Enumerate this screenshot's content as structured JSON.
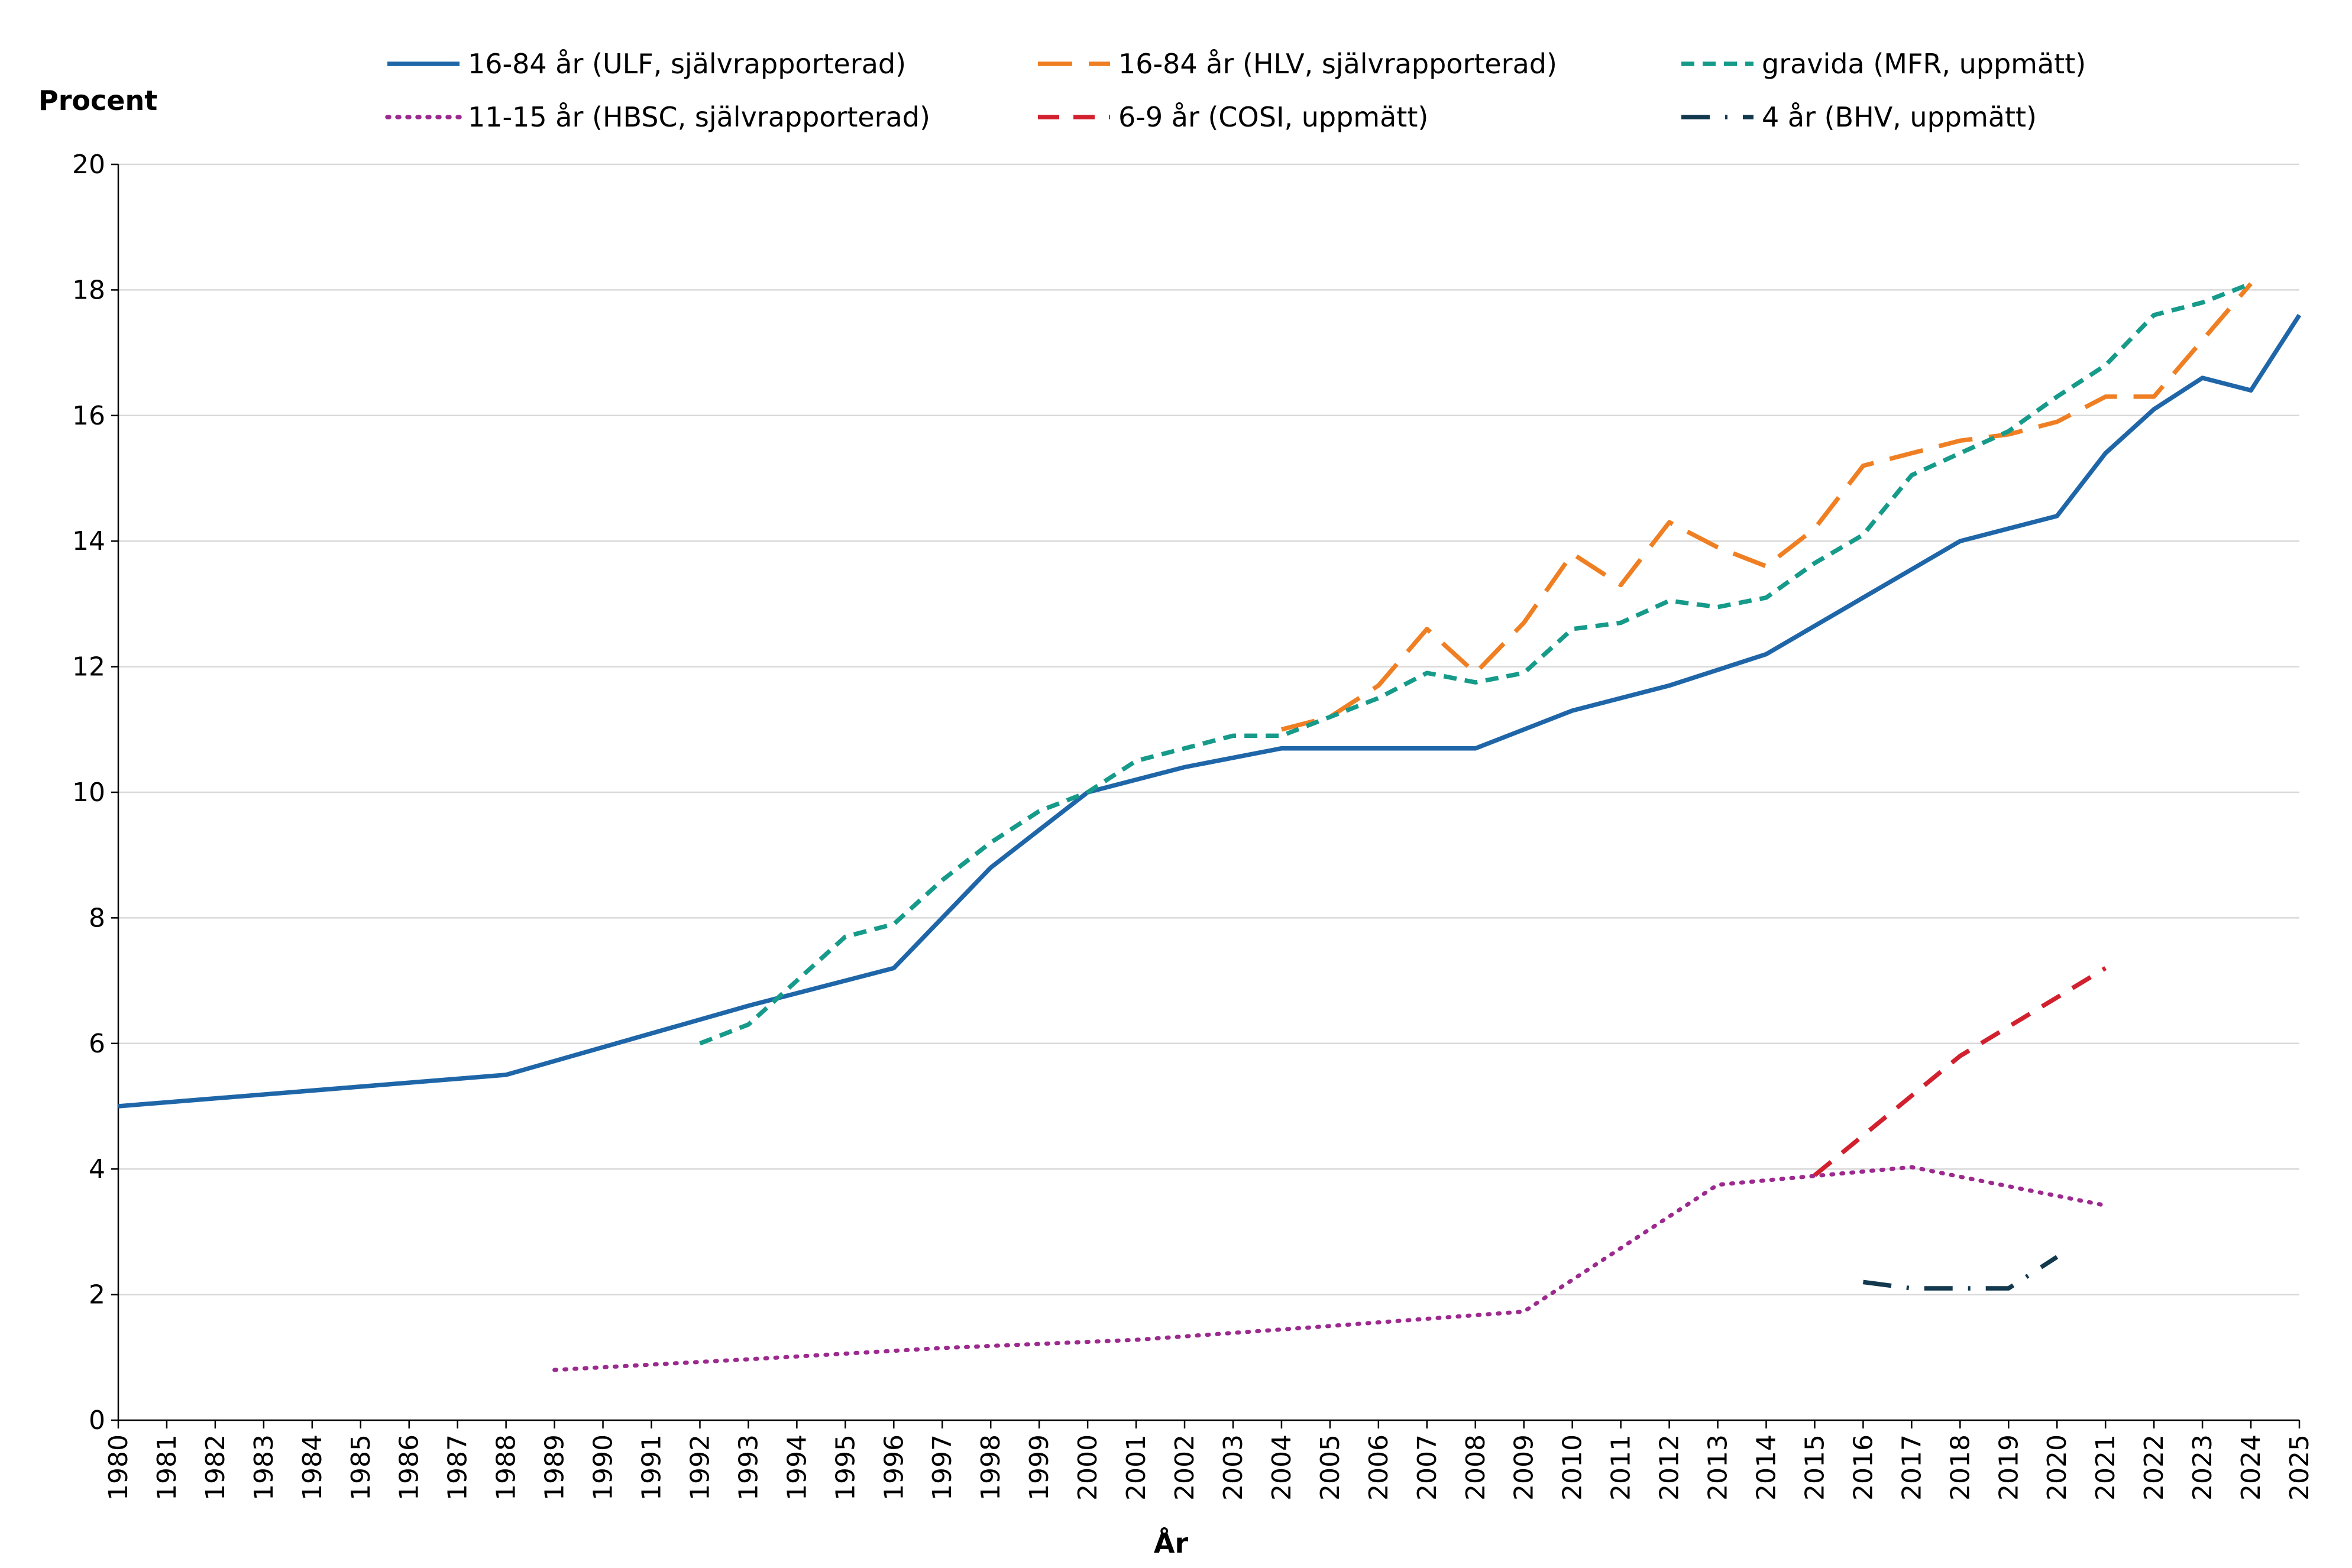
{
  "chart_data": {
    "type": "line",
    "title": "",
    "xlabel": "År",
    "ylabel": "Procent",
    "ylim": [
      0,
      20
    ],
    "yticks": [
      "0",
      "2",
      "4",
      "6",
      "8",
      "10",
      "12",
      "14",
      "16",
      "18",
      "20"
    ],
    "categories": [
      "1980",
      "1981",
      "1982",
      "1983",
      "1984",
      "1985",
      "1986",
      "1987",
      "1988",
      "1989",
      "1990",
      "1991",
      "1992",
      "1993",
      "1994",
      "1995",
      "1996",
      "1997",
      "1998",
      "1999",
      "2000",
      "2001",
      "2002",
      "2003",
      "2004",
      "2005",
      "2006",
      "2007",
      "2008",
      "2009",
      "2010",
      "2011",
      "2012",
      "2013",
      "2014",
      "2015",
      "2016",
      "2017",
      "2018",
      "2019",
      "2020",
      "2021",
      "2022",
      "2023",
      "2024",
      "2025"
    ],
    "grid": true,
    "legend_position": "top",
    "series": [
      {
        "name": "16-84 år (ULF, självrapporterad)",
        "color": "#1f66a8",
        "style": "solid",
        "points": [
          [
            1980,
            5.0
          ],
          [
            1988,
            5.5
          ],
          [
            1993,
            6.6
          ],
          [
            1996,
            7.2
          ],
          [
            1998,
            8.8
          ],
          [
            2000,
            10.0
          ],
          [
            2002,
            10.4
          ],
          [
            2004,
            10.7
          ],
          [
            2008,
            10.7
          ],
          [
            2010,
            11.3
          ],
          [
            2012,
            11.7
          ],
          [
            2014,
            12.2
          ],
          [
            2016,
            13.1
          ],
          [
            2018,
            14.0
          ],
          [
            2020,
            14.4
          ],
          [
            2021,
            15.4
          ],
          [
            2022,
            16.1
          ],
          [
            2023,
            16.6
          ],
          [
            2024,
            16.4
          ],
          [
            2025,
            17.6
          ]
        ]
      },
      {
        "name": "16-84 år (HLV, självrapporterad)",
        "color": "#ef7f22",
        "style": "longdash",
        "points": [
          [
            2004,
            11.0
          ],
          [
            2005,
            11.2
          ],
          [
            2006,
            11.7
          ],
          [
            2007,
            12.6
          ],
          [
            2008,
            11.9
          ],
          [
            2009,
            12.7
          ],
          [
            2010,
            13.8
          ],
          [
            2011,
            13.3
          ],
          [
            2012,
            14.3
          ],
          [
            2013,
            13.9
          ],
          [
            2014,
            13.6
          ],
          [
            2015,
            14.2
          ],
          [
            2016,
            15.2
          ],
          [
            2017,
            15.4
          ],
          [
            2018,
            15.6
          ],
          [
            2019,
            15.7
          ],
          [
            2020,
            15.9
          ],
          [
            2021,
            16.3
          ],
          [
            2022,
            16.3
          ],
          [
            2023,
            17.2
          ],
          [
            2024,
            18.1
          ]
        ]
      },
      {
        "name": "gravida (MFR, uppmätt)",
        "color": "#169a8a",
        "style": "shortdash",
        "points": [
          [
            1992,
            6.0
          ],
          [
            1993,
            6.3
          ],
          [
            1994,
            7.0
          ],
          [
            1995,
            7.7
          ],
          [
            1996,
            7.9
          ],
          [
            1997,
            8.6
          ],
          [
            1998,
            9.2
          ],
          [
            1999,
            9.7
          ],
          [
            2000,
            10.0
          ],
          [
            2001,
            10.5
          ],
          [
            2002,
            10.7
          ],
          [
            2003,
            10.9
          ],
          [
            2004,
            10.9
          ],
          [
            2005,
            11.2
          ],
          [
            2006,
            11.5
          ],
          [
            2007,
            11.9
          ],
          [
            2008,
            11.75
          ],
          [
            2009,
            11.9
          ],
          [
            2010,
            12.6
          ],
          [
            2011,
            12.7
          ],
          [
            2012,
            13.05
          ],
          [
            2013,
            12.95
          ],
          [
            2014,
            13.1
          ],
          [
            2015,
            13.65
          ],
          [
            2016,
            14.1
          ],
          [
            2017,
            15.05
          ],
          [
            2018,
            15.4
          ],
          [
            2019,
            15.75
          ],
          [
            2020,
            16.3
          ],
          [
            2021,
            16.8
          ],
          [
            2022,
            17.6
          ],
          [
            2023,
            17.8
          ],
          [
            2024,
            18.1
          ]
        ]
      },
      {
        "name": "11-15 år (HBSC, självrapporterad)",
        "color": "#9c2a8e",
        "style": "dotted",
        "points": [
          [
            1989,
            0.8
          ],
          [
            1993,
            0.97
          ],
          [
            1997,
            1.15
          ],
          [
            2001,
            1.28
          ],
          [
            2005,
            1.5
          ],
          [
            2009,
            1.73
          ],
          [
            2013,
            3.75
          ],
          [
            2017,
            4.03
          ],
          [
            2021,
            3.42
          ]
        ]
      },
      {
        "name": "6-9 år (COSI, uppmätt)",
        "color": "#d2202f",
        "style": "dash",
        "points": [
          [
            2015,
            3.9
          ],
          [
            2018,
            5.8
          ],
          [
            2021,
            7.2
          ]
        ]
      },
      {
        "name": "4 år (BHV, uppmätt)",
        "color": "#12394e",
        "style": "dashdot",
        "points": [
          [
            2016,
            2.2
          ],
          [
            2017,
            2.1
          ],
          [
            2018,
            2.1
          ],
          [
            2019,
            2.1
          ],
          [
            2020,
            2.6
          ]
        ]
      }
    ]
  }
}
